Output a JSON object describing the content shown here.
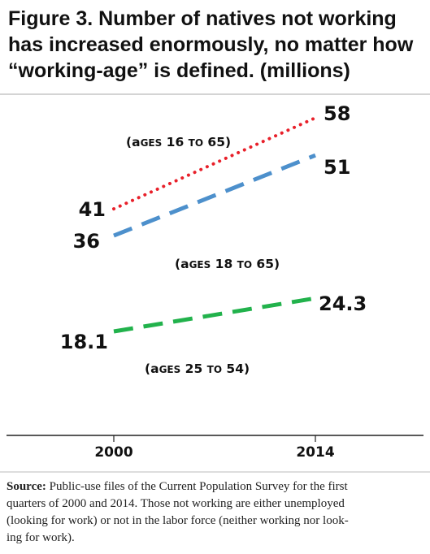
{
  "chart_data": {
    "type": "line",
    "title_lines": [
      "Figure 3. Number of natives not working",
      "has increased enormously, no matter how",
      "“working-age” is defined. (millions)"
    ],
    "x": [
      "2000",
      "2014"
    ],
    "series": [
      {
        "name": "(ages 16 to 65)",
        "values": [
          41,
          58
        ],
        "value_labels": [
          "41",
          "58"
        ],
        "color": "#e8202a",
        "dash": "dotted"
      },
      {
        "name": "(ages 18 to 65)",
        "values": [
          36,
          51
        ],
        "value_labels": [
          "36",
          "51"
        ],
        "color": "#4d90cc",
        "dash": "long-dash"
      },
      {
        "name": "(ages 25 to 54)",
        "values": [
          18.1,
          24.3
        ],
        "value_labels": [
          "18.1",
          "24.3"
        ],
        "color": "#22b24c",
        "dash": "long-dash"
      }
    ],
    "xlabel": "",
    "ylabel": "",
    "grid": false,
    "legend": "inline labels",
    "source_label": "Source:",
    "source_lines": [
      "Public-use files of the Current Population Survey for the first",
      "quarters of 2000 and 2014. Those not working are either unemployed",
      "(looking for work) or not in the labor force (neither working nor look-",
      "ing for work)."
    ]
  },
  "colors": {
    "rule": "#bbbbbb",
    "axis": "#222222"
  }
}
